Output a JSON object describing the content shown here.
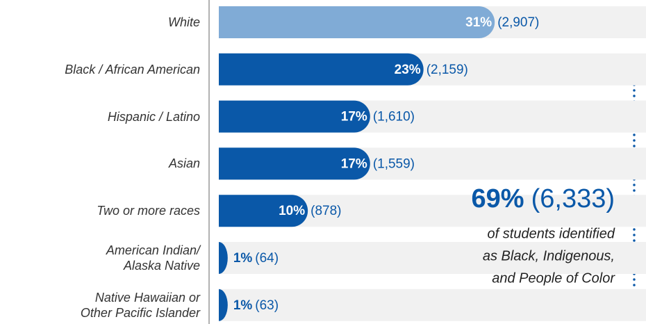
{
  "chart_data": {
    "type": "bar",
    "orientation": "horizontal",
    "categories": [
      "White",
      "Black / African American",
      "Hispanic / Latino",
      "Asian",
      "Two or more races",
      "American Indian/\nAlaska Native",
      "Native Hawaiian or\nOther Pacific Islander"
    ],
    "values": [
      31,
      23,
      17,
      17,
      10,
      1,
      1
    ],
    "value_labels": [
      "31%",
      "23%",
      "17%",
      "17%",
      "10%",
      "1%",
      "1%"
    ],
    "count_labels": [
      "(2,907)",
      "(2,159)",
      "(1,610)",
      "(1,559)",
      "(878)",
      "(64)",
      "(63)"
    ],
    "colors": [
      "#80abd6",
      "#0a58a8",
      "#0a58a8",
      "#0a58a8",
      "#0a58a8",
      "#0a58a8",
      "#0a58a8"
    ],
    "xlim": [
      0,
      48
    ],
    "annotation": {
      "percent": "69%",
      "count": "(6,333)",
      "lines": [
        "of students identified",
        "as Black, Indigenous,",
        "and People of Color"
      ]
    }
  }
}
